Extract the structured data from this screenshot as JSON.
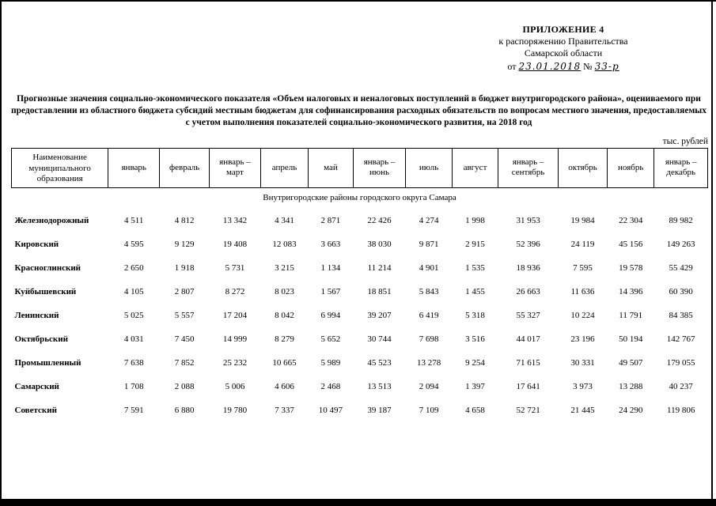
{
  "appendix": {
    "line1": "ПРИЛОЖЕНИЕ 4",
    "line2": "к распоряжению Правительства",
    "line3": "Самарской области",
    "date_prefix": "от",
    "date_value": "23.01.2018",
    "number_prefix": "№",
    "number_value": "33-р"
  },
  "title": "Прогнозные значения социально-экономического показателя «Объем налоговых и неналоговых поступлений в бюджет внутригородского района», оцениваемого при предоставлении из областного бюджета субсидий местным бюджетам для софинансирования расходных обязательств по вопросам местного значения, предоставляемых с учетом выполнения показателей социально-экономического развития, на 2018 год",
  "units": "тыс. рублей",
  "table": {
    "header": [
      "Наименование муниципального образования",
      "январь",
      "февраль",
      "январь – март",
      "апрель",
      "май",
      "январь – июнь",
      "июль",
      "август",
      "январь – сентябрь",
      "октябрь",
      "ноябрь",
      "январь – декабрь"
    ],
    "section": "Внутригородские районы городского округа Самара",
    "rows": [
      {
        "name": "Железнодорожный",
        "values": [
          "4 511",
          "4 812",
          "13 342",
          "4 341",
          "2 871",
          "22 426",
          "4 274",
          "1 998",
          "31 953",
          "19 984",
          "22 304",
          "89 982"
        ]
      },
      {
        "name": "Кировский",
        "values": [
          "4 595",
          "9 129",
          "19 408",
          "12 083",
          "3 663",
          "38 030",
          "9 871",
          "2 915",
          "52 396",
          "24 119",
          "45 156",
          "149 263"
        ]
      },
      {
        "name": "Красноглинский",
        "values": [
          "2 650",
          "1 918",
          "5 731",
          "3 215",
          "1 134",
          "11 214",
          "4 901",
          "1 535",
          "18 936",
          "7 595",
          "19 578",
          "55 429"
        ]
      },
      {
        "name": "Куйбышевский",
        "values": [
          "4 105",
          "2 807",
          "8 272",
          "8 023",
          "1 567",
          "18 851",
          "5 843",
          "1 455",
          "26 663",
          "11 636",
          "14 396",
          "60 390"
        ]
      },
      {
        "name": "Ленинский",
        "values": [
          "5 025",
          "5 557",
          "17 204",
          "8 042",
          "6 994",
          "39 207",
          "6 419",
          "5 318",
          "55 327",
          "10 224",
          "11 791",
          "84 385"
        ]
      },
      {
        "name": "Октябрьский",
        "values": [
          "4 031",
          "7 450",
          "14 999",
          "8 279",
          "5 652",
          "30 744",
          "7 698",
          "3 516",
          "44 017",
          "23 196",
          "50 194",
          "142 767"
        ]
      },
      {
        "name": "Промышленный",
        "values": [
          "7 638",
          "7 852",
          "25 232",
          "10 665",
          "5 989",
          "45 523",
          "13 278",
          "9 254",
          "71 615",
          "30 331",
          "49 507",
          "179 055"
        ]
      },
      {
        "name": "Самарский",
        "values": [
          "1 708",
          "2 088",
          "5 006",
          "4 606",
          "2 468",
          "13 513",
          "2 094",
          "1 397",
          "17 641",
          "3 973",
          "13 288",
          "40 237"
        ]
      },
      {
        "name": "Советский",
        "values": [
          "7 591",
          "6 880",
          "19 780",
          "7 337",
          "10 497",
          "39 187",
          "7 109",
          "4 658",
          "52 721",
          "21 445",
          "24 290",
          "119 806"
        ]
      }
    ]
  }
}
